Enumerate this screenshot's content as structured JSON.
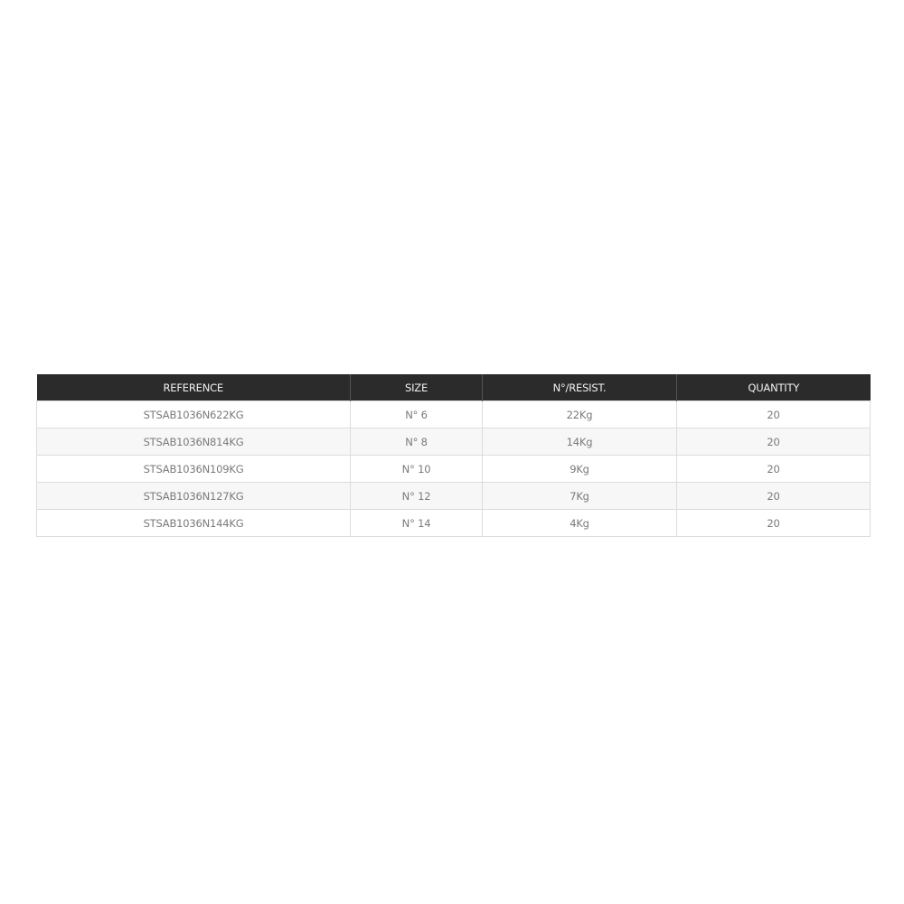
{
  "table": {
    "headers": [
      "REFERENCE",
      "SIZE",
      "N°/RESIST.",
      "QUANTITY"
    ],
    "rows": [
      [
        "STSAB1036N622KG",
        "N° 6",
        "22Kg",
        "20"
      ],
      [
        "STSAB1036N814KG",
        "N° 8",
        "14Kg",
        "20"
      ],
      [
        "STSAB1036N109KG",
        "N° 10",
        "9Kg",
        "20"
      ],
      [
        "STSAB1036N127KG",
        "N° 12",
        "7Kg",
        "20"
      ],
      [
        "STSAB1036N144KG",
        "N° 14",
        "4Kg",
        "20"
      ]
    ]
  },
  "colors": {
    "header_bg": "#2b2b2b",
    "header_text": "#f2f2f2",
    "cell_text": "#7a7a7a",
    "stripe": "#f7f7f7"
  }
}
